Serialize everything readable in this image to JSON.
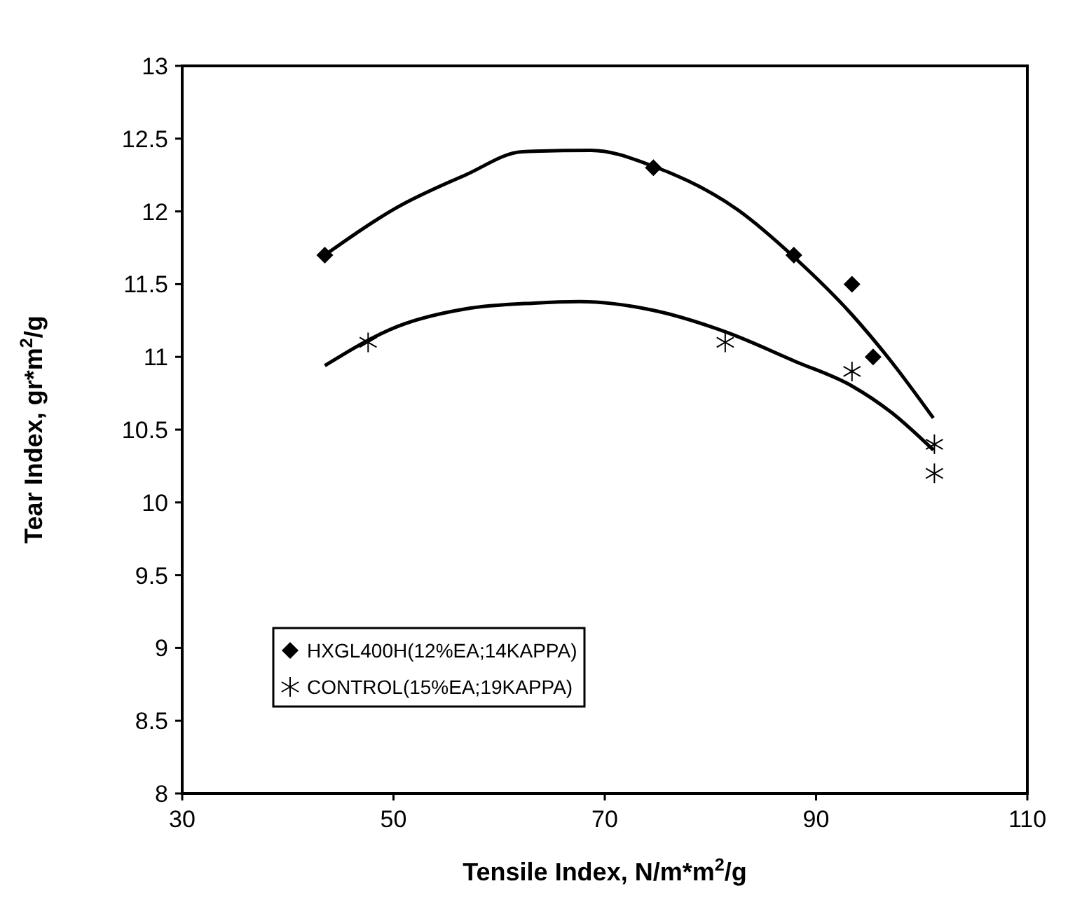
{
  "chart_data": {
    "type": "scatter",
    "xlabel": "Tensile Index, N/m*m$^{2}$/g",
    "ylabel": "Tear Index, gr*m$^{2}$/g",
    "xlim": [
      30,
      110
    ],
    "xticks": [
      30,
      50,
      70,
      90,
      110
    ],
    "ylim": [
      8,
      13
    ],
    "yticks": [
      8,
      {
        "value": 8.5,
        "label": "8.5"
      },
      9,
      {
        "value": 9.5,
        "label": "9.5"
      },
      10,
      {
        "value": 10.5,
        "label": "10.5"
      },
      11,
      {
        "value": 11.5,
        "label": "11.5"
      },
      12,
      {
        "value": 12.5,
        "label": "12.5"
      },
      13
    ],
    "grid": false,
    "legend": "left",
    "series": [
      {
        "name": "HXGL400H(12%EA;14KAPPA)",
        "marker": "diamond",
        "color": "#000000",
        "x": [
          43.5,
          74.6,
          87.9,
          93.4,
          95.4
        ],
        "values": [
          11.7,
          12.3,
          11.7,
          11.5,
          11.0
        ]
      },
      {
        "name": "CONTROL(15%EA;19KAPPA)",
        "marker": "cross",
        "color": "#000000",
        "x": [
          47.6,
          81.4,
          93.4,
          101.2,
          101.2
        ],
        "values": [
          11.1,
          11.1,
          10.9,
          10.4,
          10.2
        ]
      },
      {
        "type": "line",
        "marker": "none",
        "color": "#000000",
        "x": [
          43.5,
          50.4,
          56.8,
          62.2,
          68.7,
          74.6,
          82.6,
          88.0,
          93.4,
          97.1,
          101.1
        ],
        "values": [
          11.7,
          12.03,
          12.25,
          12.41,
          12.42,
          12.31,
          12.01,
          11.68,
          11.29,
          10.97,
          10.58
        ]
      },
      {
        "type": "line",
        "marker": "none",
        "color": "#000000",
        "x": [
          43.5,
          50.4,
          56.8,
          63.3,
          67.6,
          74.6,
          81.5,
          88.0,
          93.4,
          97.1,
          101.1
        ],
        "values": [
          10.94,
          11.21,
          11.33,
          11.37,
          11.38,
          11.32,
          11.17,
          10.97,
          10.8,
          10.62,
          10.36
        ]
      }
    ]
  }
}
